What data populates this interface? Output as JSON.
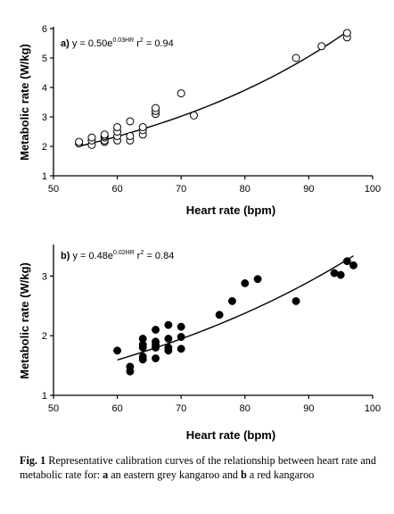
{
  "chart_data": [
    {
      "type": "scatter",
      "panel_label": "a)",
      "equation": {
        "prefix": "y = 0.50e",
        "exponent": "0.03HR",
        "r_base": "r",
        "r_exp": "2",
        "r_value": " = 0.94"
      },
      "xlabel": "Heart rate (bpm)",
      "ylabel": "Metabolic rate (W/kg)",
      "xlim": [
        50,
        100
      ],
      "ylim": [
        1,
        6
      ],
      "xticks": [
        "50",
        "60",
        "70",
        "80",
        "90",
        "100"
      ],
      "yticks": [
        "1",
        "2",
        "3",
        "4",
        "5",
        "6"
      ],
      "marker": "open-circle",
      "fit": {
        "a": 0.5,
        "b": 0.0257,
        "x_range": [
          54,
          96
        ]
      },
      "x": [
        54,
        54,
        56,
        56,
        56,
        58,
        58,
        58,
        58,
        58,
        60,
        60,
        60,
        60,
        62,
        62,
        62,
        64,
        64,
        64,
        66,
        66,
        66,
        70,
        72,
        88,
        92,
        96,
        96
      ],
      "y": [
        2.1,
        2.15,
        2.05,
        2.2,
        2.3,
        2.15,
        2.2,
        2.3,
        2.35,
        2.4,
        2.2,
        2.35,
        2.5,
        2.65,
        2.2,
        2.35,
        2.85,
        2.4,
        2.55,
        2.65,
        3.1,
        3.2,
        3.3,
        3.8,
        3.05,
        5.0,
        5.4,
        5.7,
        5.85
      ]
    },
    {
      "type": "scatter",
      "panel_label": "b)",
      "equation": {
        "prefix": "y = 0.48e",
        "exponent": "0.02HR",
        "r_base": "r",
        "r_exp": "2",
        "r_value": " = 0.84"
      },
      "xlabel": "Heart rate (bpm)",
      "ylabel": "Metabolic rate (W/kg)",
      "xlim": [
        50,
        100
      ],
      "ylim": [
        1,
        3.5
      ],
      "xticks": [
        "50",
        "60",
        "70",
        "80",
        "90",
        "100"
      ],
      "yticks": [
        "1",
        "2",
        "3"
      ],
      "marker": "filled-circle",
      "fit": {
        "a": 0.48,
        "b": 0.02,
        "x_range": [
          60,
          97
        ]
      },
      "x": [
        60,
        62,
        62,
        64,
        64,
        64,
        64,
        64,
        66,
        66,
        66,
        66,
        66,
        68,
        68,
        68,
        68,
        70,
        70,
        70,
        76,
        78,
        80,
        82,
        88,
        94,
        95,
        96,
        97
      ],
      "y": [
        1.75,
        1.4,
        1.48,
        1.6,
        1.65,
        1.8,
        1.85,
        1.95,
        1.62,
        1.8,
        1.85,
        1.9,
        2.1,
        1.75,
        1.8,
        1.95,
        2.18,
        1.78,
        1.98,
        2.15,
        2.35,
        2.58,
        2.88,
        2.95,
        2.58,
        3.05,
        3.02,
        3.25,
        3.18
      ]
    }
  ],
  "caption": {
    "fig_label": "Fig. 1",
    "text_1": " Representative calibration curves of the relationship between heart rate and metabolic rate for: ",
    "label_a": "a",
    "text_2": " an eastern grey kangaroo and ",
    "label_b": "b",
    "text_3": " a red kangaroo"
  }
}
